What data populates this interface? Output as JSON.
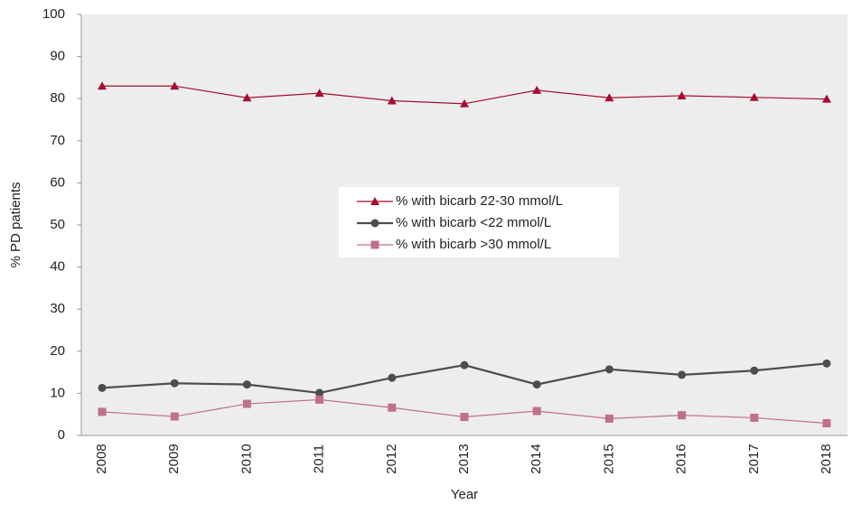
{
  "chart_data": {
    "type": "line",
    "x_label": "Year",
    "y_label": "% PD patients",
    "categories": [
      "2008",
      "2009",
      "2010",
      "2011",
      "2012",
      "2013",
      "2014",
      "2015",
      "2016",
      "2017",
      "2018"
    ],
    "series": [
      {
        "name": "% with bicarb 22-30 mmol/L",
        "color": "#a50e32",
        "marker": "triangle",
        "values": [
          83,
          83,
          80.2,
          81.3,
          79.5,
          78.8,
          82,
          80.2,
          80.7,
          80.3,
          79.9
        ]
      },
      {
        "name": "% with bicarb <22 mmol/L",
        "color": "#4d4d4d",
        "marker": "circle",
        "values": [
          11.3,
          12.4,
          12.1,
          10.1,
          13.7,
          16.7,
          12.1,
          15.7,
          14.4,
          15.4,
          17.1
        ]
      },
      {
        "name": "% with bicarb >30 mmol/L",
        "color": "#c0708a",
        "marker": "square",
        "values": [
          5.6,
          4.5,
          7.5,
          8.5,
          6.6,
          4.4,
          5.8,
          4.0,
          4.8,
          4.2,
          2.9
        ]
      }
    ],
    "ylim": [
      0,
      100
    ],
    "yticks": [
      0,
      10,
      20,
      30,
      40,
      50,
      60,
      70,
      80,
      90,
      100
    ]
  }
}
